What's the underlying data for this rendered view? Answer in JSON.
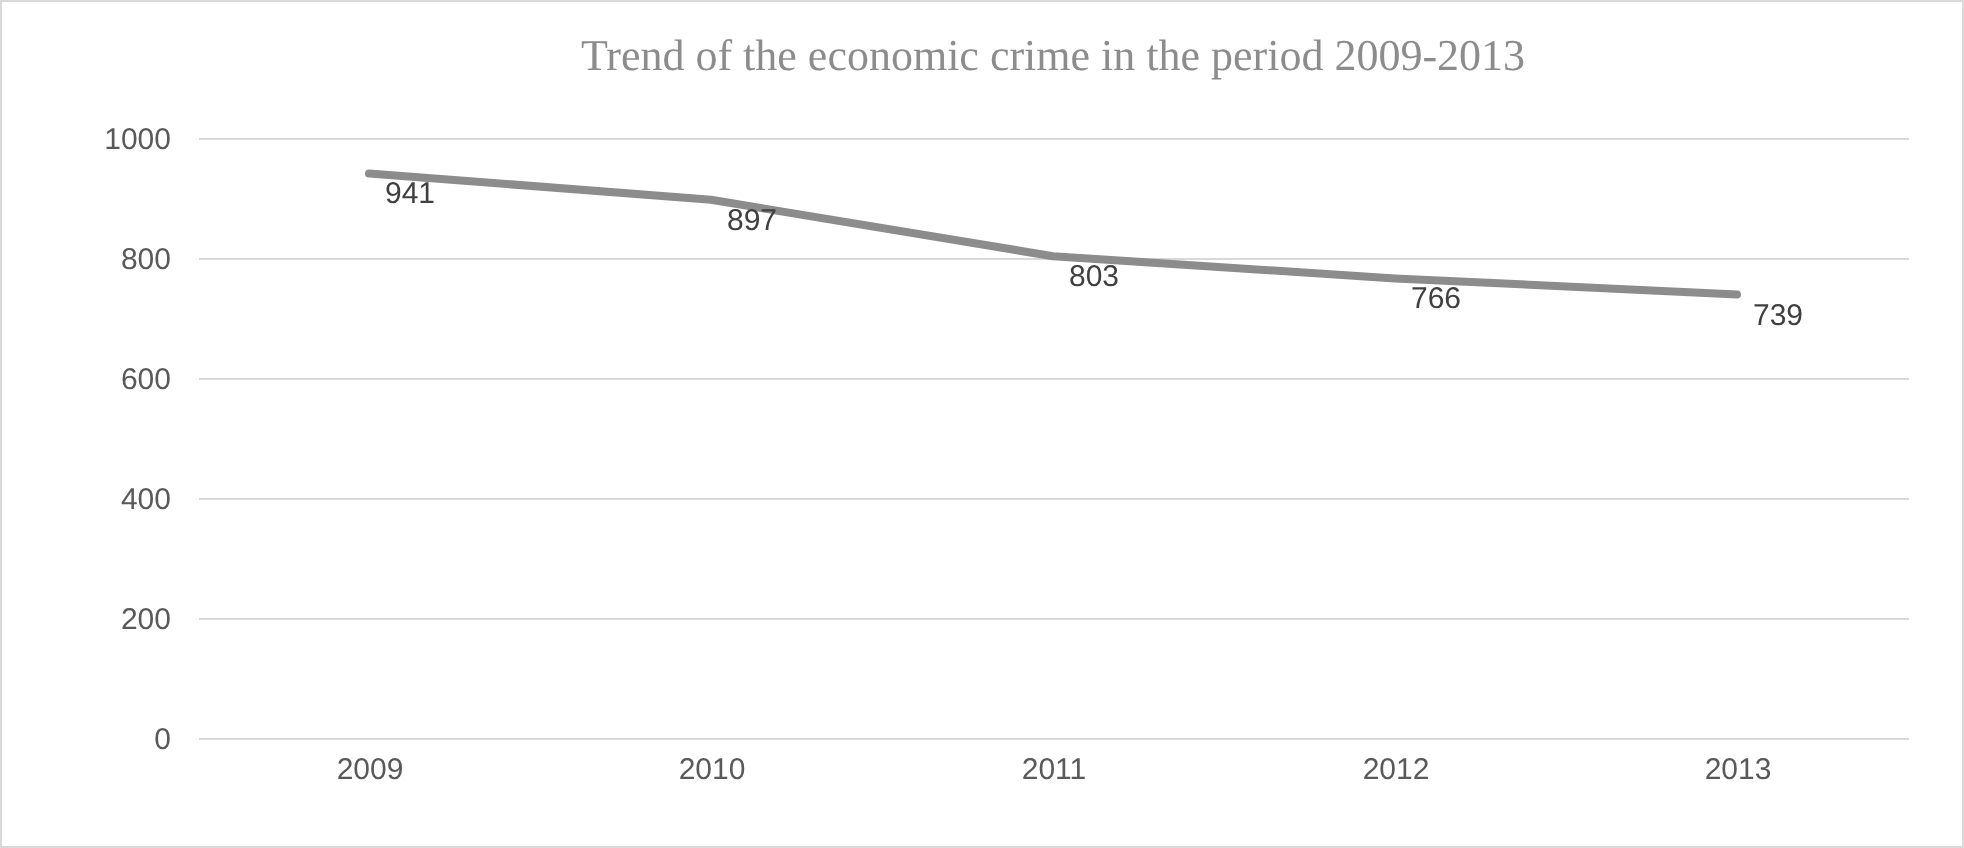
{
  "chart_data": {
    "type": "line",
    "title": "Trend of the economic crime in the period 2009-2013",
    "categories": [
      "2009",
      "2010",
      "2011",
      "2012",
      "2013"
    ],
    "series": [
      {
        "color": "#8c8c8c",
        "values": [
          941,
          897,
          803,
          766,
          739
        ]
      }
    ],
    "ylim": [
      0,
      1000
    ],
    "yticks": [
      0,
      200,
      400,
      600,
      800,
      1000
    ],
    "grid": "y",
    "data_labels": true,
    "legend": false,
    "marker": "none"
  }
}
